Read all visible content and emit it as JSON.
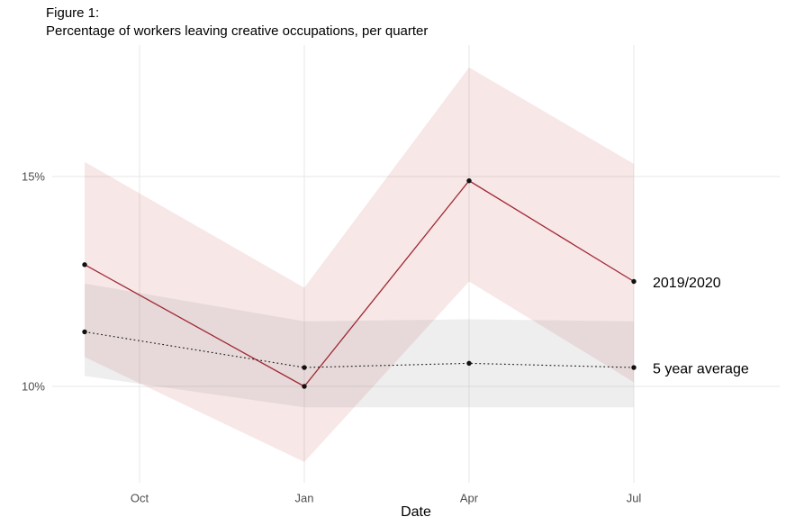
{
  "title": {
    "line1": "Figure 1:",
    "line2": "Percentage of workers leaving creative occupations, per quarter"
  },
  "chart_data": {
    "type": "line",
    "title": "Figure 1: Percentage of workers leaving creative occupations, per quarter",
    "xlabel": "Date",
    "ylabel": "",
    "y_unit": "percent",
    "x_unit": "months_since_september",
    "grid": true,
    "legend_position": "inline-right",
    "x_ticks": [
      {
        "m": 1,
        "label": "Oct"
      },
      {
        "m": 4,
        "label": "Jan"
      },
      {
        "m": 7,
        "label": "Apr"
      },
      {
        "m": 10,
        "label": "Jul"
      }
    ],
    "y_ticks": [
      {
        "v": 15,
        "label": "15%"
      },
      {
        "v": 10,
        "label": "10%"
      }
    ],
    "ylim": [
      7.7,
      18.1
    ],
    "point_color": "#111111",
    "series": [
      {
        "name": "2019/2020",
        "label": "2019/2020",
        "style": "solid",
        "color": "#a02834",
        "x": [
          0,
          4,
          7,
          10
        ],
        "values": [
          12.9,
          10.0,
          14.9,
          12.5
        ],
        "band": {
          "upper": [
            15.35,
            12.35,
            17.6,
            15.3
          ],
          "lower": [
            10.7,
            8.2,
            12.5,
            10.1
          ],
          "color": "rgba(193,66,66,0.13)"
        }
      },
      {
        "name": "5 year average",
        "label": "5 year average",
        "style": "dotted",
        "color": "#1a1a1a",
        "x": [
          0,
          4,
          7,
          10
        ],
        "values": [
          11.3,
          10.45,
          10.55,
          10.45
        ],
        "band": {
          "upper": [
            12.45,
            11.55,
            11.6,
            11.55
          ],
          "lower": [
            10.25,
            9.5,
            9.5,
            9.5
          ],
          "color": "rgba(115,115,115,0.12)"
        }
      }
    ]
  }
}
